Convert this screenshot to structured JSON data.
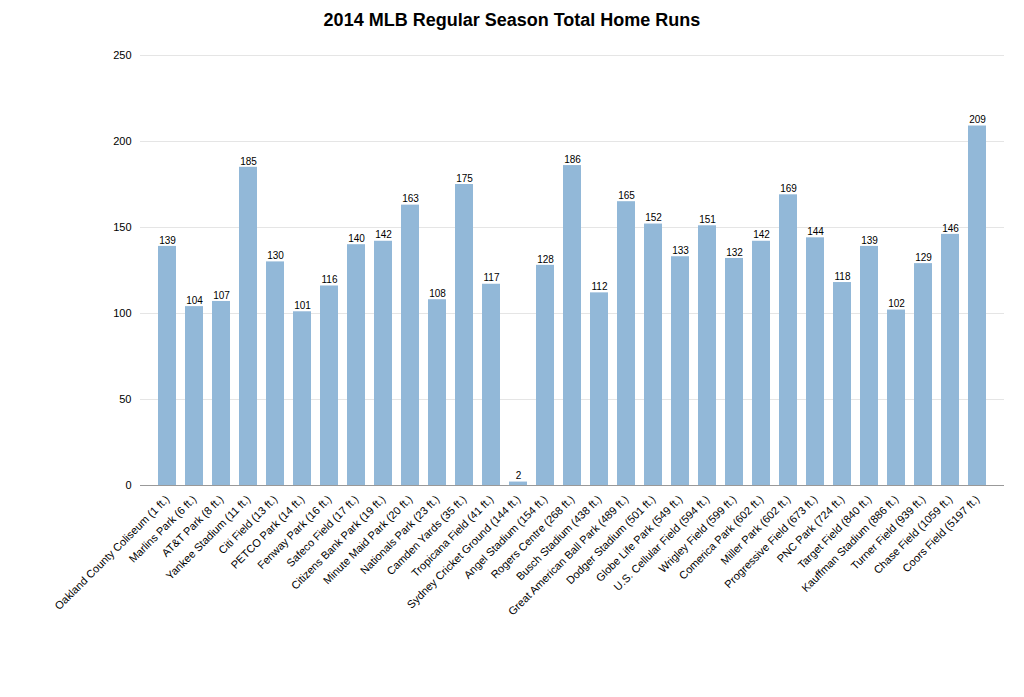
{
  "chart_data": {
    "type": "bar",
    "title": "2014 MLB Regular Season Total Home Runs",
    "categories": [
      "Oakland County Coliseum (1 ft.)",
      "Marlins Park (6 ft.)",
      "AT&T Park (8 ft.)",
      "Yankee Stadium (11 ft.)",
      "Citi Field (13 ft.)",
      "PETCO Park (14 ft.)",
      "Fenway Park (16 ft.)",
      "Safeco Field (17 ft.)",
      "Citizens Bank Park (19 ft.)",
      "Minute Maid Park (20 ft.)",
      "Nationals Park (23 ft.)",
      "Camden Yards (35 ft.)",
      "Tropicana Field (41 ft.)",
      "Sydney Cricket Ground (144 ft.)",
      "Angel Stadium (154 ft.)",
      "Rogers Centre (268 ft.)",
      "Busch Stadium (438 ft.)",
      "Great American Ball Park (489 ft.)",
      "Dodger Stadium (501 ft.)",
      "Globe Life Park (549 ft.)",
      "U.S. Cellular Field (594 ft.)",
      "Wrigley Field (599 ft.)",
      "Comerica Park (602 ft.)",
      "Miller Park (602 ft.)",
      "Progressive Field (673 ft.)",
      "PNC Park (724 ft.)",
      "Target Field (840 ft.)",
      "Kauffman Stadium (886 ft.)",
      "Turner Field (939 ft.)",
      "Chase Field (1059 ft.)",
      "Coors Field (5197 ft.)"
    ],
    "values": [
      139,
      104,
      107,
      185,
      130,
      101,
      116,
      140,
      142,
      163,
      108,
      175,
      117,
      2,
      128,
      186,
      112,
      165,
      152,
      133,
      151,
      132,
      142,
      169,
      144,
      118,
      139,
      102,
      129,
      146,
      209
    ],
    "color": "#92b8d8",
    "ylim": [
      0,
      250
    ],
    "yticks": [
      0,
      50,
      100,
      150,
      200,
      250
    ],
    "grid": true,
    "data_labels": true
  }
}
